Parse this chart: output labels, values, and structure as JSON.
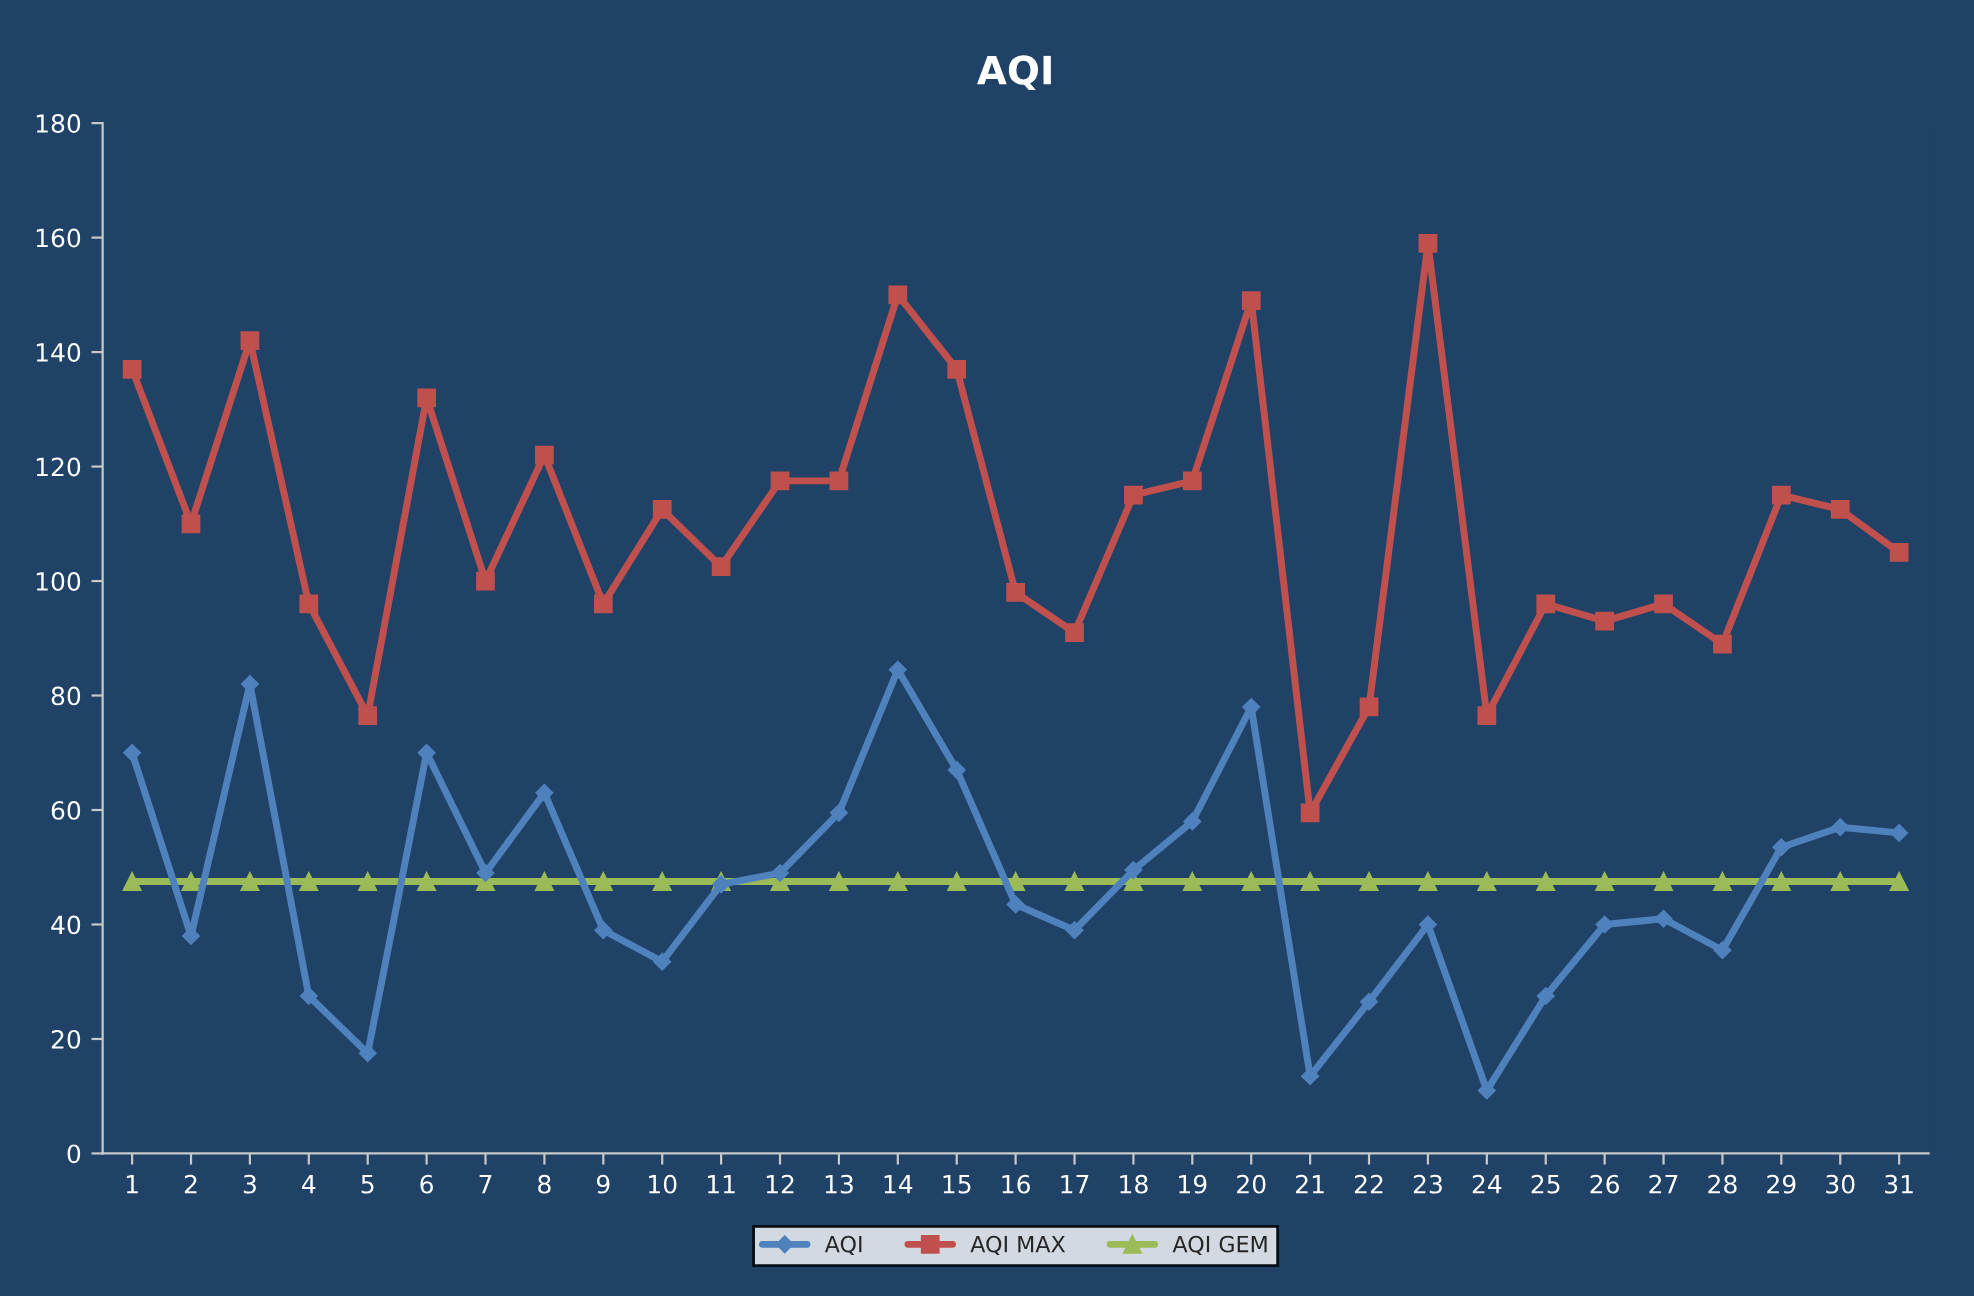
{
  "chart_data": {
    "type": "line",
    "title": "AQI",
    "categories": [
      "1",
      "2",
      "3",
      "4",
      "5",
      "6",
      "7",
      "8",
      "9",
      "10",
      "11",
      "12",
      "13",
      "14",
      "15",
      "16",
      "17",
      "18",
      "19",
      "20",
      "21",
      "22",
      "23",
      "24",
      "25",
      "26",
      "27",
      "28",
      "29",
      "30",
      "31"
    ],
    "series": [
      {
        "name": "AQI",
        "color": "#4f81bd",
        "marker": "diamond",
        "values": [
          70,
          38,
          82,
          27.5,
          17.5,
          70,
          49,
          63,
          39,
          33.5,
          47,
          49,
          59.5,
          84.5,
          67,
          43.5,
          39,
          49.5,
          58,
          78,
          13.5,
          26.5,
          40,
          11,
          27.5,
          40,
          41,
          35.5,
          53.5,
          57,
          56
        ]
      },
      {
        "name": "AQI MAX",
        "color": "#c0504d",
        "marker": "square",
        "values": [
          137,
          110,
          142,
          96,
          76.5,
          132,
          100,
          122,
          96,
          112.5,
          102.5,
          117.5,
          117.5,
          150,
          137,
          98,
          91,
          115,
          117.5,
          149,
          59.5,
          78,
          159,
          76.5,
          96,
          93,
          96,
          89,
          115,
          112.5,
          105
        ]
      },
      {
        "name": "AQI GEM",
        "color": "#9bbb59",
        "marker": "triangle",
        "values": [
          47.5,
          47.5,
          47.5,
          47.5,
          47.5,
          47.5,
          47.5,
          47.5,
          47.5,
          47.5,
          47.5,
          47.5,
          47.5,
          47.5,
          47.5,
          47.5,
          47.5,
          47.5,
          47.5,
          47.5,
          47.5,
          47.5,
          47.5,
          47.5,
          47.5,
          47.5,
          47.5,
          47.5,
          47.5,
          47.5,
          47.5
        ]
      }
    ],
    "ylim": [
      0,
      180
    ],
    "yticks": [
      0,
      20,
      40,
      60,
      80,
      100,
      120,
      140,
      160,
      180
    ],
    "grid": false,
    "legend": "bottom",
    "line_style": "solid"
  }
}
